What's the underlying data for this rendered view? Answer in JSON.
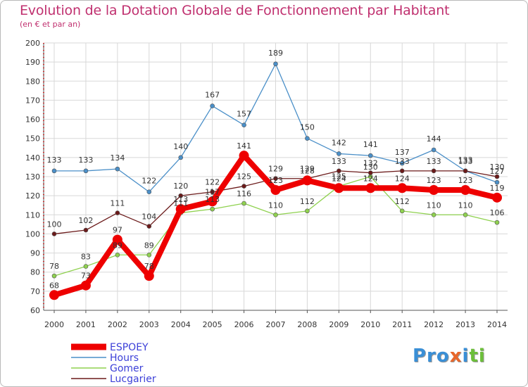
{
  "header": {
    "title": "Evolution de la Dotation Globale de Fonctionnement par Habitant",
    "subtitle": "(en € et par an)"
  },
  "logo": {
    "parts": [
      "Pro",
      "x",
      "i",
      "ti"
    ],
    "colors": [
      "#3a8fd6",
      "#e8662a",
      "#3a8fd6",
      "#6cbf3a"
    ]
  },
  "chart_data": {
    "type": "line",
    "title": "Evolution de la Dotation Globale de Fonctionnement par Habitant",
    "subtitle": "(en € et par an)",
    "xlabel": "",
    "ylabel": "",
    "x": [
      2000,
      2001,
      2002,
      2003,
      2004,
      2005,
      2006,
      2007,
      2008,
      2009,
      2010,
      2011,
      2012,
      2013,
      2014
    ],
    "ylim": [
      60,
      200
    ],
    "yticks": [
      60,
      70,
      80,
      90,
      100,
      110,
      120,
      130,
      140,
      150,
      160,
      170,
      180,
      190,
      200
    ],
    "grid": true,
    "legend_position": "bottom-left",
    "series": [
      {
        "name": "Hours",
        "color": "#4a8fc8",
        "values": [
          133,
          133,
          134,
          122,
          140,
          167,
          157,
          189,
          150,
          142,
          141,
          137,
          144,
          133,
          127
        ]
      },
      {
        "name": "Gomer",
        "color": "#8fd14f",
        "values": [
          78,
          83,
          89,
          89,
          111,
          113,
          116,
          110,
          112,
          125,
          130,
          112,
          110,
          110,
          106
        ]
      },
      {
        "name": "Lucgarier",
        "color": "#6b1a1a",
        "values": [
          100,
          102,
          111,
          104,
          120,
          122,
          125,
          129,
          129,
          133,
          132,
          133,
          133,
          133,
          130
        ]
      },
      {
        "name": "ESPOEY",
        "color": "#ee0000",
        "values": [
          68,
          73,
          97,
          78,
          113,
          117,
          141,
          123,
          128,
          124,
          124,
          124,
          123,
          123,
          119
        ]
      }
    ],
    "legend_order": [
      "ESPOEY",
      "Hours",
      "Gomer",
      "Lucgarier"
    ]
  }
}
